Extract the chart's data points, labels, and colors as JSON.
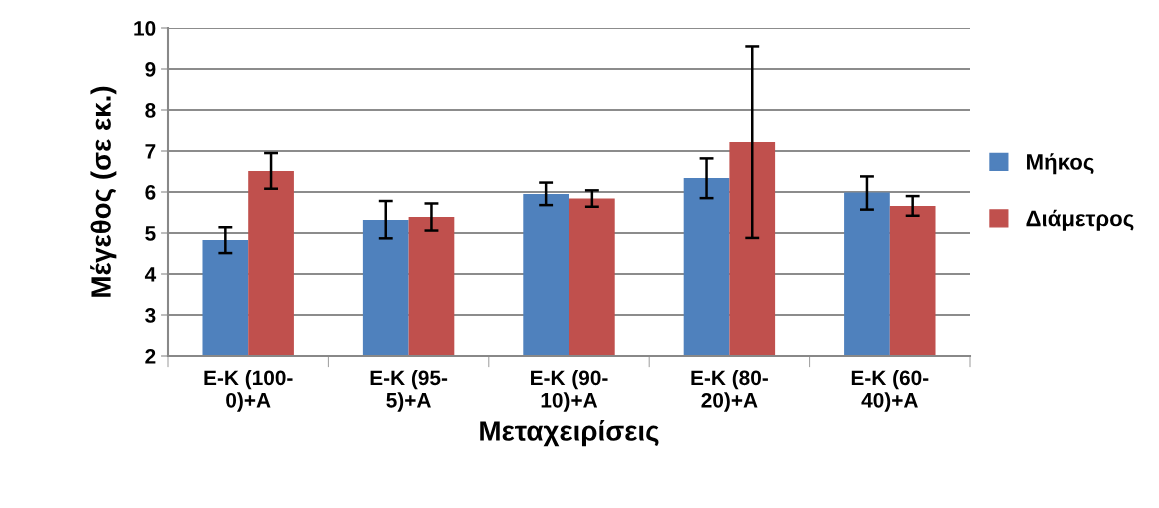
{
  "chart_data": {
    "type": "bar",
    "xlabel": "Μεταχειρίσεις",
    "ylabel": "Μέγεθος (σε εκ.)",
    "categories": [
      "Ε-Κ (100-0)+Α",
      "Ε-Κ (95-5)+Α",
      "Ε-Κ (90-10)+Α",
      "Ε-Κ (80-20)+Α",
      "Ε-Κ (60-40)+Α"
    ],
    "series": [
      {
        "name": "Μήκος",
        "color": "#4f81bd",
        "values": [
          4.83,
          5.32,
          5.95,
          6.34,
          5.99
        ],
        "errors": [
          [
            4.51,
            5.14
          ],
          [
            4.87,
            5.78
          ],
          [
            5.68,
            6.23
          ],
          [
            5.85,
            6.82
          ],
          [
            5.57,
            6.38
          ]
        ]
      },
      {
        "name": "Διάμετρος",
        "color": "#c0504d",
        "values": [
          6.51,
          5.39,
          5.84,
          7.22,
          5.66
        ],
        "errors": [
          [
            6.08,
            6.95
          ],
          [
            5.06,
            5.72
          ],
          [
            5.64,
            6.04
          ],
          [
            4.88,
            9.55
          ],
          [
            5.42,
            5.9
          ]
        ]
      }
    ],
    "ylim": [
      2,
      10
    ],
    "yticks": [
      2,
      3,
      4,
      5,
      6,
      7,
      8,
      9,
      10
    ],
    "grid": "y",
    "legend": "right"
  }
}
